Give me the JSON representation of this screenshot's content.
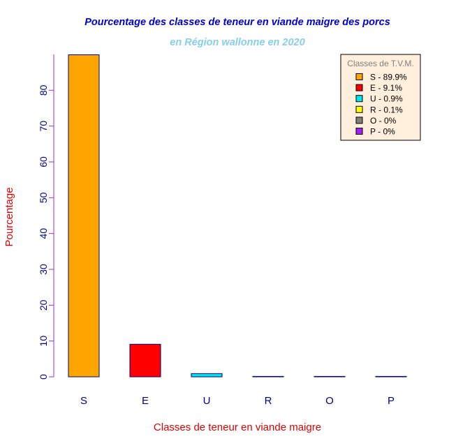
{
  "chart_data": {
    "type": "bar",
    "title": "Pourcentage des classes de teneur en viande maigre des porcs",
    "subtitle": "en Région wallonne en 2020",
    "xlabel": "Classes de teneur en viande maigre",
    "ylabel": "Pourcentage",
    "categories": [
      "S",
      "E",
      "U",
      "R",
      "O",
      "P"
    ],
    "values": [
      89.9,
      9.1,
      0.9,
      0.1,
      0,
      0
    ],
    "colors": [
      "#ffa500",
      "#ff0000",
      "#00e5ee",
      "#ffff00",
      "#7f7f7f",
      "#a020f0"
    ],
    "ylim": [
      0,
      90
    ],
    "yticks": [
      0,
      10,
      20,
      30,
      40,
      50,
      60,
      70,
      80
    ],
    "grid": false,
    "legend": {
      "title": "Classes de T.V.M.",
      "position": "top-right",
      "entries": [
        "S - 89.9%",
        "E - 9.1%",
        "U - 0.9%",
        "R - 0.1%",
        "O - 0%",
        "P - 0%"
      ]
    },
    "title_color": "#0000cd",
    "subtitle_color": "#87ceeb",
    "axis_label_color": "#e00000",
    "tick_color": "#00008b",
    "axis_line_color": "#9b30c0",
    "legend_bg": "#ffefdc"
  }
}
